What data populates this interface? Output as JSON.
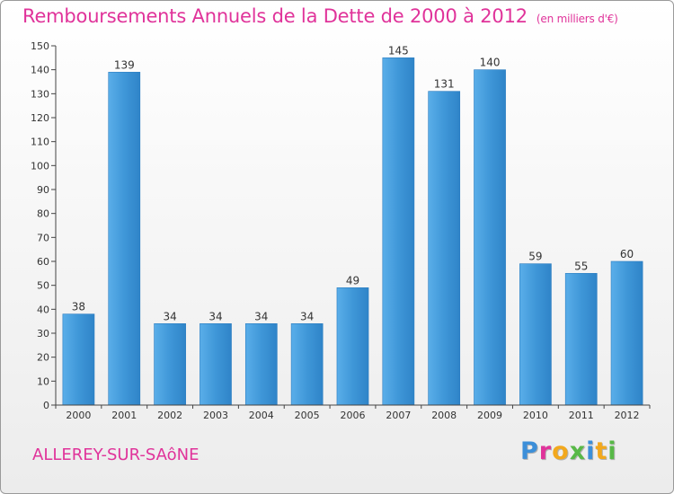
{
  "chart_data": {
    "type": "bar",
    "title": "Remboursements Annuels de la Dette de 2000 à 2012",
    "subtitle": "(en milliers d'€)",
    "categories": [
      "2000",
      "2001",
      "2002",
      "2003",
      "2004",
      "2005",
      "2006",
      "2007",
      "2008",
      "2009",
      "2010",
      "2011",
      "2012"
    ],
    "values": [
      38,
      139,
      34,
      34,
      34,
      34,
      49,
      145,
      131,
      140,
      59,
      55,
      60
    ],
    "ylim": [
      0,
      150
    ],
    "yticks": [
      "0",
      "10",
      "20",
      "30",
      "40",
      "50",
      "60",
      "70",
      "80",
      "90",
      "100",
      "110",
      "120",
      "130",
      "140",
      "150"
    ],
    "xlabel": "",
    "ylabel": "",
    "grid": false,
    "bar_color": "#3f97d8"
  },
  "footer": {
    "city": "ALLEREY-SUR-SAôNE",
    "brand_letters": [
      {
        "ch": "P",
        "color": "#3c8fd9"
      },
      {
        "ch": "r",
        "color": "#e0339a"
      },
      {
        "ch": "o",
        "color": "#f2a81d"
      },
      {
        "ch": "x",
        "color": "#58b947"
      },
      {
        "ch": "i",
        "color": "#3c8fd9"
      },
      {
        "ch": "t",
        "color": "#f2a81d"
      },
      {
        "ch": "i",
        "color": "#58b947"
      }
    ]
  },
  "title_color": "#e0339a"
}
